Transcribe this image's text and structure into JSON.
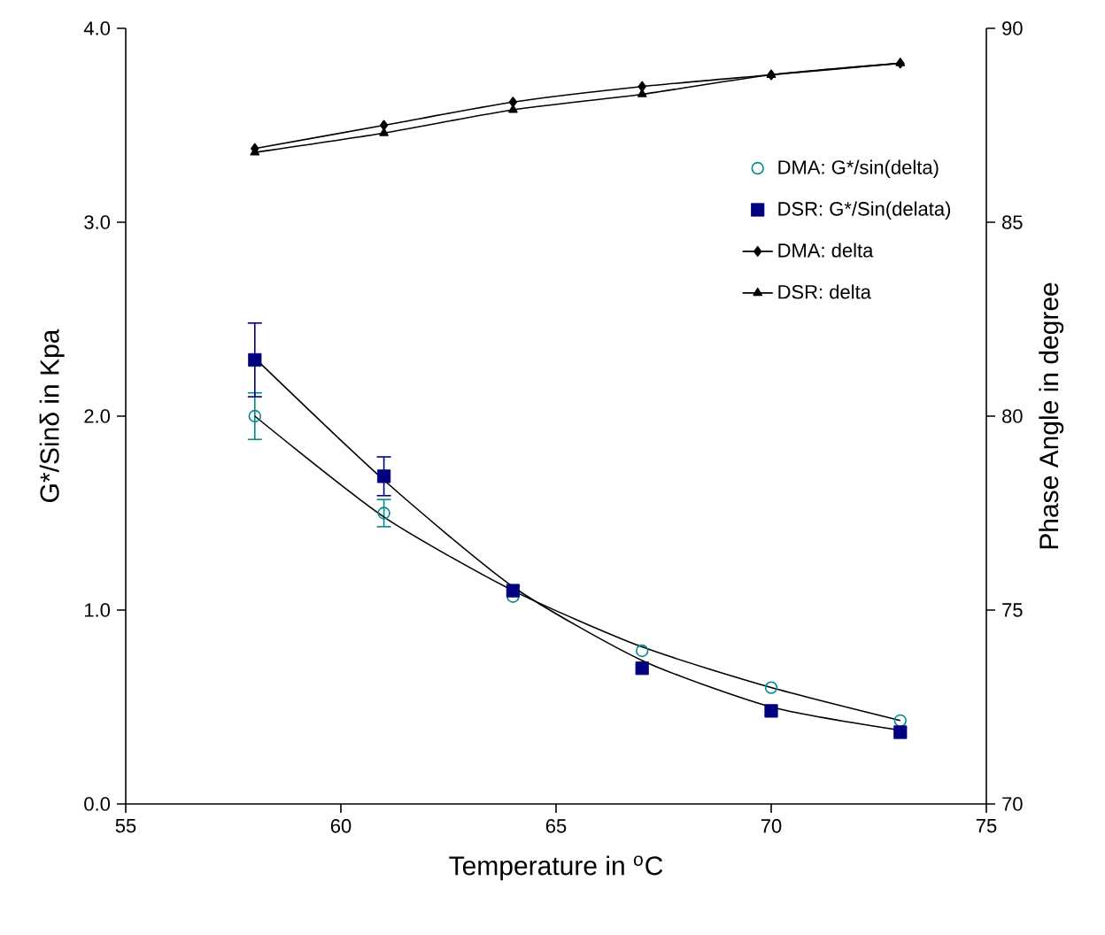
{
  "chart_data": {
    "type": "scatter",
    "xlabel": "Temperature in $^{o}$C",
    "ylabel": "G*/Sinδ in Kpa",
    "y2label": "Phase Angle in degree",
    "xlim": [
      55,
      75
    ],
    "xticks": [
      55,
      60,
      65,
      70,
      75
    ],
    "ylim": [
      0,
      4
    ],
    "yticks": [
      {
        "value": 0,
        "label": "0.0"
      },
      {
        "value": 1,
        "label": "1.0"
      },
      {
        "value": 2,
        "label": "2.0"
      },
      {
        "value": 3,
        "label": "3.0"
      },
      {
        "value": 4,
        "label": "4.0"
      }
    ],
    "y2lim": [
      70,
      90
    ],
    "y2ticks": [
      70,
      75,
      80,
      85,
      90
    ],
    "x": [
      58,
      61,
      64,
      67,
      70,
      73
    ],
    "legend": "top right",
    "grid": false,
    "series": [
      {
        "name": "DMA: G*/sin(delta)",
        "marker": "circle",
        "color": "#008b8b",
        "values": [
          2.0,
          1.5,
          1.07,
          0.79,
          0.6,
          0.43
        ],
        "errors": [
          0.12,
          0.07,
          null,
          null,
          null,
          null
        ]
      },
      {
        "name": "DSR: G*/Sin(delata)",
        "marker": "square",
        "color": "#000080",
        "values": [
          2.29,
          1.69,
          1.1,
          0.7,
          0.48,
          0.37
        ],
        "errors": [
          0.19,
          0.1,
          null,
          null,
          null,
          null
        ]
      },
      {
        "type": "line",
        "marker": "none",
        "color": "#000000",
        "values": [
          2.0,
          1.48,
          1.1,
          0.81,
          0.6,
          0.43
        ]
      },
      {
        "type": "line",
        "marker": "none",
        "color": "#000000",
        "values": [
          2.3,
          1.67,
          1.12,
          0.74,
          0.5,
          0.38
        ]
      },
      {
        "name": "DMA: delta",
        "type": "line",
        "axis": "y2",
        "marker": "diamond",
        "color": "#000000",
        "values": [
          86.9,
          87.5,
          88.1,
          88.5,
          88.8,
          89.1
        ]
      },
      {
        "name": "DSR: delta",
        "type": "line",
        "axis": "y2",
        "marker": "triangle",
        "color": "#000000",
        "values": [
          86.8,
          87.3,
          87.9,
          88.3,
          88.8,
          89.1
        ]
      }
    ]
  }
}
